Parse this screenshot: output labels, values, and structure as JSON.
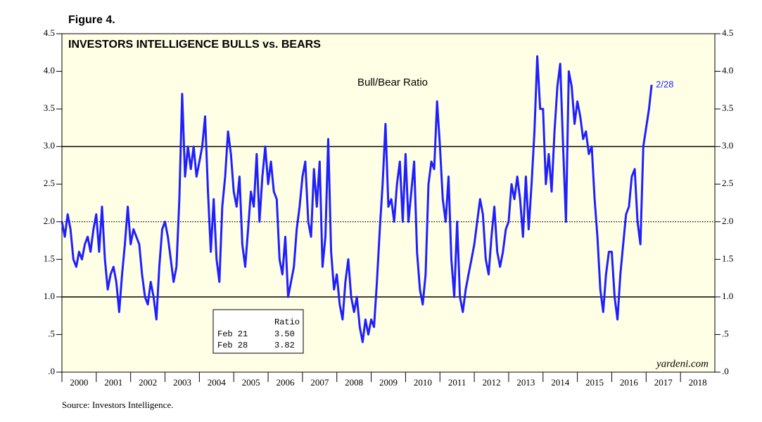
{
  "chart_data": {
    "type": "line",
    "figure_label": "Figure 4.",
    "title": "INVESTORS INTELLIGENCE BULLS vs. BEARS",
    "annotation": "Bull/Bear Ratio",
    "end_label": "2/28",
    "watermark": "yardeni.com",
    "source": "Source: Investors Intelligence.",
    "table": {
      "header": "Ratio",
      "rows": [
        [
          "Feb 21",
          "3.50"
        ],
        [
          "Feb 28",
          "3.82"
        ]
      ]
    },
    "background": "#ffffe6",
    "hlines": [
      {
        "value": 1,
        "style": "solid"
      },
      {
        "value": 3,
        "style": "solid"
      },
      {
        "value": 2,
        "style": "dotted"
      }
    ],
    "xlim": [
      2000,
      2019
    ],
    "xticks": [
      {
        "value": 2000.5,
        "label": "2000"
      },
      {
        "value": 2001.5,
        "label": "2001"
      },
      {
        "value": 2002.5,
        "label": "2002"
      },
      {
        "value": 2003.5,
        "label": "2003"
      },
      {
        "value": 2004.5,
        "label": "2004"
      },
      {
        "value": 2005.5,
        "label": "2005"
      },
      {
        "value": 2006.5,
        "label": "2006"
      },
      {
        "value": 2007.5,
        "label": "2007"
      },
      {
        "value": 2008.5,
        "label": "2008"
      },
      {
        "value": 2009.5,
        "label": "2009"
      },
      {
        "value": 2010.5,
        "label": "2010"
      },
      {
        "value": 2011.5,
        "label": "2011"
      },
      {
        "value": 2012.5,
        "label": "2012"
      },
      {
        "value": 2013.5,
        "label": "2013"
      },
      {
        "value": 2014.5,
        "label": "2014"
      },
      {
        "value": 2015.5,
        "label": "2015"
      },
      {
        "value": 2016.5,
        "label": "2016"
      },
      {
        "value": 2017.5,
        "label": "2017"
      },
      {
        "value": 2018.5,
        "label": "2018"
      }
    ],
    "ylim": [
      0,
      4.5
    ],
    "yticks": [
      {
        "value": 0,
        "label": ".0"
      },
      {
        "value": 0.5,
        "label": ".5"
      },
      {
        "value": 1,
        "label": "1.0"
      },
      {
        "value": 1.5,
        "label": "1.5"
      },
      {
        "value": 2,
        "label": "2.0"
      },
      {
        "value": 2.5,
        "label": "2.5"
      },
      {
        "value": 3,
        "label": "3.0"
      },
      {
        "value": 3.5,
        "label": "3.5"
      },
      {
        "value": 4,
        "label": "4.0"
      },
      {
        "value": 4.5,
        "label": "4.5"
      }
    ],
    "series": [
      {
        "name": "Bull/Bear Ratio",
        "color": "#1f1fff",
        "x": [
          2000,
          2000.083,
          2000.167,
          2000.25,
          2000.333,
          2000.417,
          2000.5,
          2000.583,
          2000.667,
          2000.75,
          2000.833,
          2000.917,
          2001,
          2001.083,
          2001.167,
          2001.25,
          2001.333,
          2001.417,
          2001.5,
          2001.583,
          2001.667,
          2001.75,
          2001.833,
          2001.917,
          2002,
          2002.083,
          2002.167,
          2002.25,
          2002.333,
          2002.417,
          2002.5,
          2002.583,
          2002.667,
          2002.75,
          2002.833,
          2002.917,
          2003,
          2003.083,
          2003.167,
          2003.25,
          2003.333,
          2003.417,
          2003.5,
          2003.583,
          2003.667,
          2003.75,
          2003.833,
          2003.917,
          2004,
          2004.083,
          2004.167,
          2004.25,
          2004.333,
          2004.417,
          2004.5,
          2004.583,
          2004.667,
          2004.75,
          2004.833,
          2004.917,
          2005,
          2005.083,
          2005.167,
          2005.25,
          2005.333,
          2005.417,
          2005.5,
          2005.583,
          2005.667,
          2005.75,
          2005.833,
          2005.917,
          2006,
          2006.083,
          2006.167,
          2006.25,
          2006.333,
          2006.417,
          2006.5,
          2006.583,
          2006.667,
          2006.75,
          2006.833,
          2006.917,
          2007,
          2007.083,
          2007.167,
          2007.25,
          2007.333,
          2007.417,
          2007.5,
          2007.583,
          2007.667,
          2007.75,
          2007.833,
          2007.917,
          2008,
          2008.083,
          2008.167,
          2008.25,
          2008.333,
          2008.417,
          2008.5,
          2008.583,
          2008.667,
          2008.75,
          2008.833,
          2008.917,
          2009,
          2009.083,
          2009.167,
          2009.25,
          2009.333,
          2009.417,
          2009.5,
          2009.583,
          2009.667,
          2009.75,
          2009.833,
          2009.917,
          2010,
          2010.083,
          2010.167,
          2010.25,
          2010.333,
          2010.417,
          2010.5,
          2010.583,
          2010.667,
          2010.75,
          2010.833,
          2010.917,
          2011,
          2011.083,
          2011.167,
          2011.25,
          2011.333,
          2011.417,
          2011.5,
          2011.583,
          2011.667,
          2011.75,
          2011.833,
          2011.917,
          2012,
          2012.083,
          2012.167,
          2012.25,
          2012.333,
          2012.417,
          2012.5,
          2012.583,
          2012.667,
          2012.75,
          2012.833,
          2012.917,
          2013,
          2013.083,
          2013.167,
          2013.25,
          2013.333,
          2013.417,
          2013.5,
          2013.583,
          2013.667,
          2013.75,
          2013.833,
          2013.917,
          2014,
          2014.083,
          2014.167,
          2014.25,
          2014.333,
          2014.417,
          2014.5,
          2014.583,
          2014.667,
          2014.75,
          2014.833,
          2014.917,
          2015,
          2015.083,
          2015.167,
          2015.25,
          2015.333,
          2015.417,
          2015.5,
          2015.583,
          2015.667,
          2015.75,
          2015.833,
          2015.917,
          2016,
          2016.083,
          2016.167,
          2016.25,
          2016.333,
          2016.417,
          2016.5,
          2016.583,
          2016.667,
          2016.75,
          2016.833,
          2016.917,
          2017.083,
          2017.16
        ],
        "values": [
          2.0,
          1.8,
          2.1,
          1.9,
          1.5,
          1.4,
          1.6,
          1.5,
          1.7,
          1.8,
          1.6,
          1.9,
          2.1,
          1.6,
          2.2,
          1.5,
          1.1,
          1.3,
          1.4,
          1.2,
          0.8,
          1.3,
          1.7,
          2.2,
          1.7,
          1.9,
          1.8,
          1.7,
          1.3,
          1.0,
          0.9,
          1.2,
          1.0,
          0.7,
          1.4,
          1.9,
          2.0,
          1.8,
          1.5,
          1.2,
          1.4,
          2.3,
          3.7,
          2.6,
          3.0,
          2.7,
          3.0,
          2.6,
          2.8,
          3.0,
          3.4,
          2.4,
          1.6,
          2.3,
          1.5,
          1.2,
          2.2,
          2.6,
          3.2,
          2.9,
          2.4,
          2.2,
          2.6,
          1.7,
          1.4,
          1.9,
          2.4,
          2.2,
          2.9,
          2.0,
          2.6,
          3.0,
          2.5,
          2.8,
          2.4,
          2.3,
          1.5,
          1.3,
          1.8,
          1.0,
          1.2,
          1.4,
          1.9,
          2.2,
          2.6,
          2.8,
          2.0,
          1.8,
          2.7,
          2.2,
          2.8,
          1.4,
          1.8,
          3.1,
          1.6,
          1.1,
          1.3,
          0.9,
          0.7,
          1.2,
          1.5,
          1.0,
          0.8,
          1.0,
          0.6,
          0.4,
          0.7,
          0.5,
          0.7,
          0.6,
          1.2,
          1.9,
          2.5,
          3.3,
          2.2,
          2.3,
          2.0,
          2.5,
          2.8,
          2.0,
          2.9,
          2.0,
          2.4,
          2.8,
          1.6,
          1.1,
          0.9,
          1.3,
          2.5,
          2.8,
          2.7,
          3.6,
          3.0,
          2.3,
          2.0,
          2.6,
          1.5,
          1.0,
          2.0,
          1.0,
          0.8,
          1.1,
          1.3,
          1.5,
          1.7,
          2.0,
          2.3,
          2.1,
          1.5,
          1.3,
          1.8,
          2.2,
          1.6,
          1.4,
          1.6,
          1.9,
          2.0,
          2.5,
          2.3,
          2.6,
          2.3,
          1.8,
          2.6,
          1.9,
          2.5,
          3.2,
          4.2,
          3.5,
          3.5,
          2.5,
          2.9,
          2.4,
          3.2,
          3.8,
          4.1,
          3.0,
          2.0,
          4.0,
          3.8,
          3.3,
          3.6,
          3.4,
          3.1,
          3.2,
          2.9,
          3.0,
          2.3,
          1.8,
          1.1,
          0.8,
          1.3,
          1.6,
          1.6,
          1.0,
          0.7,
          1.3,
          1.7,
          2.1,
          2.2,
          2.6,
          2.7,
          2.0,
          1.7,
          3.0,
          3.5,
          3.82
        ]
      }
    ]
  }
}
